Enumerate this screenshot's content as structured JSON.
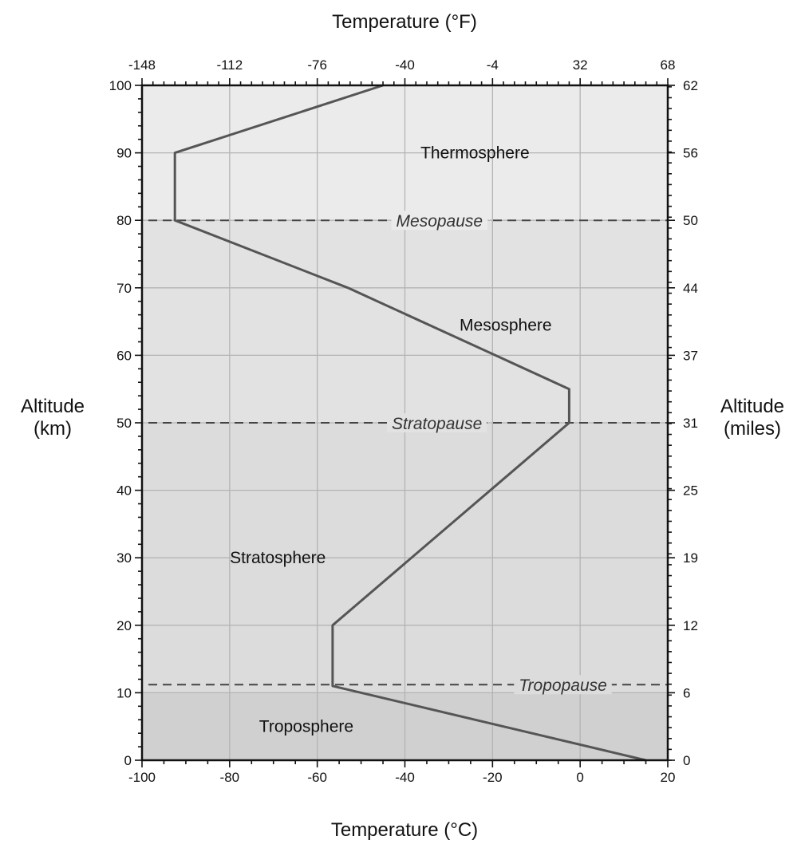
{
  "chart_data": {
    "type": "line",
    "title": "",
    "xlabel_bottom": "Temperature (°C)",
    "xlabel_top": "Temperature (°F)",
    "ylabel_left": "Altitude (km)",
    "ylabel_right": "Altitude (miles)",
    "xlim": [
      -100,
      20
    ],
    "ylim": [
      0,
      100
    ],
    "grid": true,
    "x_ticks_bottom": [
      "-100",
      "-80",
      "-60",
      "-40",
      "-20",
      "0",
      "20"
    ],
    "x_ticks_top": [
      "-148",
      "-112",
      "-76",
      "-40",
      "-4",
      "32",
      "68"
    ],
    "y_ticks_left": [
      "0",
      "10",
      "20",
      "30",
      "40",
      "50",
      "60",
      "70",
      "80",
      "90",
      "100"
    ],
    "y_ticks_right": [
      "0",
      "6",
      "12",
      "19",
      "25",
      "31",
      "37",
      "44",
      "50",
      "56",
      "62"
    ],
    "series": [
      {
        "color": "#555555",
        "points": [
          {
            "x": 15,
            "y": 0
          },
          {
            "x": -56.5,
            "y": 11
          },
          {
            "x": -56.5,
            "y": 20
          },
          {
            "x": -2.5,
            "y": 50
          },
          {
            "x": -2.5,
            "y": 55
          },
          {
            "x": -53,
            "y": 70
          },
          {
            "x": -92.5,
            "y": 80
          },
          {
            "x": -92.5,
            "y": 90
          },
          {
            "x": -45,
            "y": 100
          }
        ]
      }
    ],
    "layers": [
      {
        "name": "Troposphere",
        "from": 0,
        "to": 10,
        "fill": "#d0d0d0",
        "label_x": -62.5,
        "label_y": 5
      },
      {
        "name": "Stratosphere",
        "from": 10,
        "to": 50,
        "fill": "#dcdcdc",
        "label_x": -69,
        "label_y": 30
      },
      {
        "name": "Mesosphere",
        "from": 50,
        "to": 80,
        "fill": "#e2e2e2",
        "label_x": -17,
        "label_y": 64.5
      },
      {
        "name": "Thermosphere",
        "from": 80,
        "to": 100,
        "fill": "#ebebeb",
        "label_x": -24,
        "label_y": 90
      }
    ],
    "boundaries": [
      {
        "name": "Tropopause",
        "altitude": 11.2,
        "label_x": -14
      },
      {
        "name": "Stratopause",
        "altitude": 50,
        "label_x": -43
      },
      {
        "name": "Mesopause",
        "altitude": 80,
        "label_x": -42
      }
    ],
    "colors": {
      "grid": "#b4b4b4",
      "frame": "#111111",
      "line": "#555555",
      "dash": "#444444"
    }
  }
}
